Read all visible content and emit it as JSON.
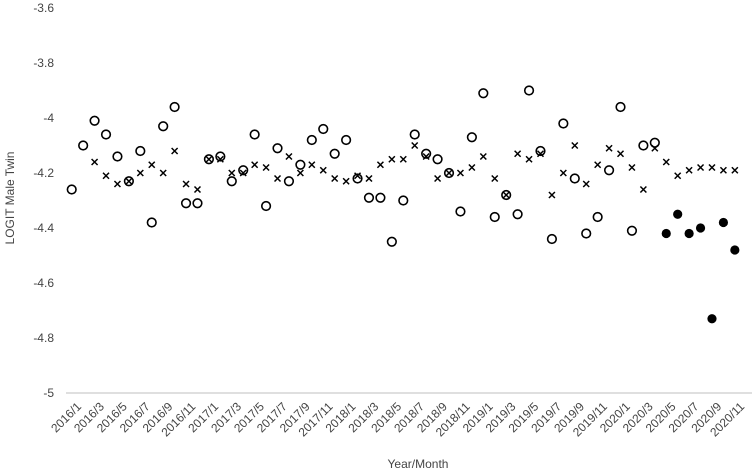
{
  "chart_data": {
    "type": "scatter",
    "xlabel": "Year/Month",
    "ylabel": "LOGIT Male Twin",
    "ylim": [
      -5,
      -3.6
    ],
    "y_ticks": [
      -3.6,
      -3.8,
      -4,
      -4.2,
      -4.4,
      -4.6,
      -4.8,
      -5
    ],
    "grid": false,
    "x_categories": [
      "2016/1",
      "2016/2",
      "2016/3",
      "2016/4",
      "2016/5",
      "2016/6",
      "2016/7",
      "2016/8",
      "2016/9",
      "2016/10",
      "2016/11",
      "2016/12",
      "2017/1",
      "2017/2",
      "2017/3",
      "2017/4",
      "2017/5",
      "2017/6",
      "2017/7",
      "2017/8",
      "2017/9",
      "2017/10",
      "2017/11",
      "2017/12",
      "2018/1",
      "2018/2",
      "2018/3",
      "2018/4",
      "2018/5",
      "2018/6",
      "2018/7",
      "2018/8",
      "2018/9",
      "2018/10",
      "2018/11",
      "2018/12",
      "2019/1",
      "2019/2",
      "2019/3",
      "2019/4",
      "2019/5",
      "2019/6",
      "2019/7",
      "2019/8",
      "2019/9",
      "2019/10",
      "2019/11",
      "2019/12",
      "2020/1",
      "2020/2",
      "2020/3",
      "2020/4",
      "2020/5",
      "2020/6",
      "2020/7",
      "2020/8",
      "2020/9",
      "2020/10",
      "2020/11",
      "2020/12"
    ],
    "x_tick_labels": [
      "2016/1",
      "2016/3",
      "2016/5",
      "2016/7",
      "2016/9",
      "2016/11",
      "2017/1",
      "2017/3",
      "2017/5",
      "2017/7",
      "2017/9",
      "2017/11",
      "2018/1",
      "2018/3",
      "2018/5",
      "2018/7",
      "2018/9",
      "2018/11",
      "2019/1",
      "2019/3",
      "2019/5",
      "2019/7",
      "2019/9",
      "2019/11",
      "2020/1",
      "2020/3",
      "2020/5",
      "2020/7",
      "2020/9",
      "2020/11"
    ],
    "series": [
      {
        "marker": "open-circle",
        "color": "#000000",
        "values": [
          -4.26,
          -4.1,
          -4.01,
          -4.06,
          -4.14,
          -4.23,
          -4.12,
          -4.38,
          -4.03,
          -3.96,
          -4.31,
          -4.31,
          -4.15,
          -4.14,
          -4.23,
          -4.19,
          -4.06,
          -4.32,
          -4.11,
          -4.23,
          -4.17,
          -4.08,
          -4.04,
          -4.13,
          -4.08,
          -4.22,
          -4.29,
          -4.29,
          -4.45,
          -4.3,
          -4.06,
          -4.13,
          -4.15,
          -4.2,
          -4.34,
          -4.07,
          -3.91,
          -4.36,
          -4.28,
          -4.35,
          -3.9,
          -4.12,
          -4.44,
          -4.02,
          -4.22,
          -4.42,
          -4.36,
          -4.19,
          -3.96,
          -4.41,
          -4.1,
          -4.09,
          null,
          null,
          null,
          null,
          null,
          null,
          null,
          null
        ]
      },
      {
        "marker": "x",
        "color": "#000000",
        "values": [
          null,
          null,
          -4.16,
          -4.21,
          -4.24,
          -4.23,
          -4.2,
          -4.17,
          -4.2,
          -4.12,
          -4.24,
          -4.26,
          -4.15,
          -4.15,
          -4.2,
          -4.2,
          -4.17,
          -4.18,
          -4.22,
          -4.14,
          -4.2,
          -4.17,
          -4.19,
          -4.22,
          -4.23,
          -4.21,
          -4.22,
          -4.17,
          -4.15,
          -4.15,
          -4.1,
          -4.14,
          -4.22,
          -4.2,
          -4.2,
          -4.18,
          -4.14,
          -4.22,
          -4.28,
          -4.13,
          -4.15,
          -4.13,
          -4.28,
          -4.2,
          -4.1,
          -4.24,
          -4.17,
          -4.11,
          -4.13,
          -4.18,
          -4.26,
          -4.11,
          -4.16,
          -4.21,
          -4.19,
          -4.18,
          -4.18,
          -4.19,
          -4.19,
          null
        ]
      },
      {
        "marker": "filled-circle",
        "color": "#000000",
        "values": [
          null,
          null,
          null,
          null,
          null,
          null,
          null,
          null,
          null,
          null,
          null,
          null,
          null,
          null,
          null,
          null,
          null,
          null,
          null,
          null,
          null,
          null,
          null,
          null,
          null,
          null,
          null,
          null,
          null,
          null,
          null,
          null,
          null,
          null,
          null,
          null,
          null,
          null,
          null,
          null,
          null,
          null,
          null,
          null,
          null,
          null,
          null,
          null,
          null,
          null,
          null,
          null,
          -4.42,
          -4.35,
          -4.42,
          -4.4,
          -4.73,
          -4.38,
          -4.48,
          null
        ]
      }
    ]
  }
}
